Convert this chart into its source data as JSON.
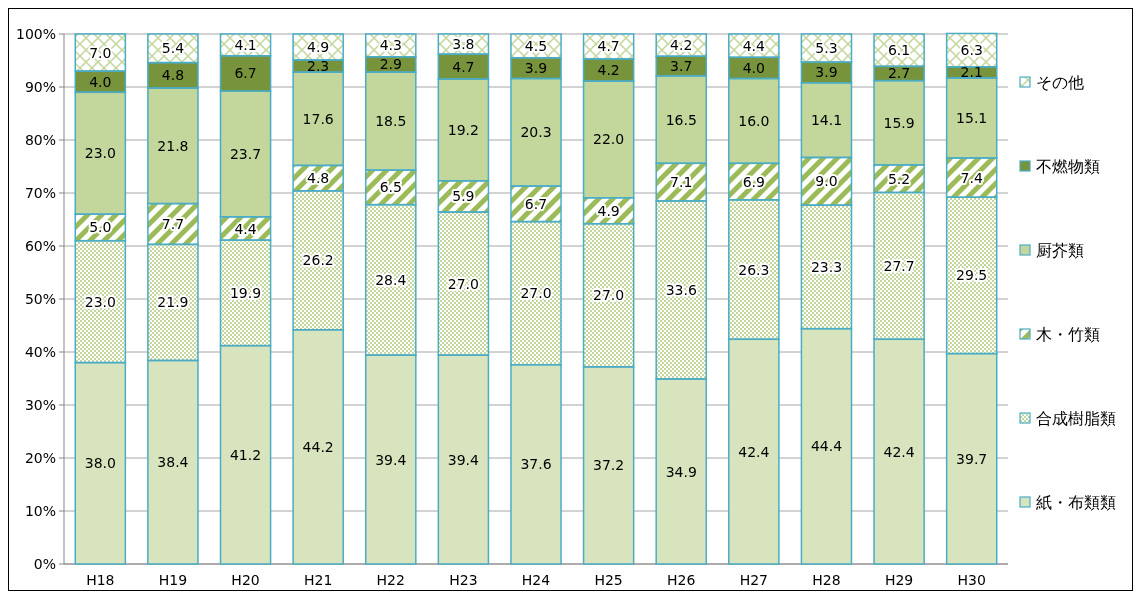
{
  "chart_data": {
    "type": "bar",
    "stacked": true,
    "categories": [
      "H18",
      "H19",
      "H20",
      "H21",
      "H22",
      "H23",
      "H24",
      "H25",
      "H26",
      "H27",
      "H28",
      "H29",
      "H30"
    ],
    "series": [
      {
        "name": "紙・布類類",
        "color": "#d7e4bd",
        "values": [
          38.0,
          38.4,
          41.2,
          44.2,
          39.4,
          39.4,
          37.6,
          37.2,
          34.9,
          42.4,
          44.4,
          42.4,
          39.7
        ],
        "value_labels": [
          "38.0",
          "38.4",
          "41.2",
          "44.2",
          "39.4",
          "39.4",
          "37.6",
          "37.2",
          "34.9",
          "42.4",
          "44.4",
          "42.4",
          "39.7"
        ]
      },
      {
        "name": "合成樹脂類",
        "color": "#c3d69b",
        "values": [
          23.0,
          21.9,
          19.9,
          26.2,
          28.4,
          27.0,
          27.0,
          27.0,
          33.6,
          26.3,
          23.3,
          27.7,
          29.5
        ],
        "value_labels": [
          "23.0",
          "21.9",
          "19.9",
          "26.2",
          "28.4",
          "27.0",
          "27.0",
          "27.0",
          "33.6",
          "26.3",
          "23.3",
          "27.7",
          "29.5"
        ]
      },
      {
        "name": "木・竹類",
        "color": "#9bbb59",
        "values": [
          5.0,
          7.7,
          4.4,
          4.8,
          6.5,
          5.9,
          6.7,
          4.9,
          7.1,
          6.9,
          9.0,
          5.2,
          7.4
        ],
        "value_labels": [
          "5.0",
          "7.7",
          "4.4",
          "4.8",
          "6.5",
          "5.9",
          "6.7",
          "4.9",
          "7.1",
          "6.9",
          "9.0",
          "5.2",
          "7.4"
        ]
      },
      {
        "name": "厨芥類",
        "color": "#c3d69b",
        "values": [
          23.0,
          21.8,
          23.7,
          17.6,
          18.5,
          19.2,
          20.3,
          22.0,
          16.5,
          16.0,
          14.1,
          15.9,
          15.1
        ],
        "value_labels": [
          "23.0",
          "21.8",
          "23.7",
          "17.6",
          "18.5",
          "19.2",
          "20.3",
          "22.0",
          "16.5",
          "16.0",
          "14.1",
          "15.9",
          "15.1"
        ]
      },
      {
        "name": "不燃物類",
        "color": "#77933c",
        "values": [
          4.0,
          4.8,
          6.7,
          2.3,
          2.9,
          4.7,
          3.9,
          4.2,
          3.7,
          4.0,
          3.9,
          2.7,
          2.1
        ],
        "value_labels": [
          "4.0",
          "4.8",
          "6.7",
          "2.3",
          "2.9",
          "4.7",
          "3.9",
          "4.2",
          "3.7",
          "4.0",
          "3.9",
          "2.7",
          "2.1"
        ]
      },
      {
        "name": "その他",
        "color": "#c3d69b",
        "values": [
          7.0,
          5.4,
          4.1,
          4.9,
          4.3,
          3.8,
          4.5,
          4.7,
          4.2,
          4.4,
          5.3,
          6.1,
          6.3
        ],
        "value_labels": [
          "7.0",
          "5.4",
          "4.1",
          "4.9",
          "4.3",
          "3.8",
          "4.5",
          "4.7",
          "4.2",
          "4.4",
          "5.3",
          "6.1",
          "6.3"
        ]
      }
    ],
    "ylim": [
      0,
      100
    ],
    "yticks": [
      {
        "value": 0,
        "label": "0%"
      },
      {
        "value": 10,
        "label": "10%"
      },
      {
        "value": 20,
        "label": "20%"
      },
      {
        "value": 30,
        "label": "30%"
      },
      {
        "value": 40,
        "label": "40%"
      },
      {
        "value": 50,
        "label": "50%"
      },
      {
        "value": 60,
        "label": "60%"
      },
      {
        "value": 70,
        "label": "70%"
      },
      {
        "value": 80,
        "label": "80%"
      },
      {
        "value": 90,
        "label": "90%"
      },
      {
        "value": 100,
        "label": "100%"
      }
    ],
    "grid": "y",
    "legend": "right"
  }
}
